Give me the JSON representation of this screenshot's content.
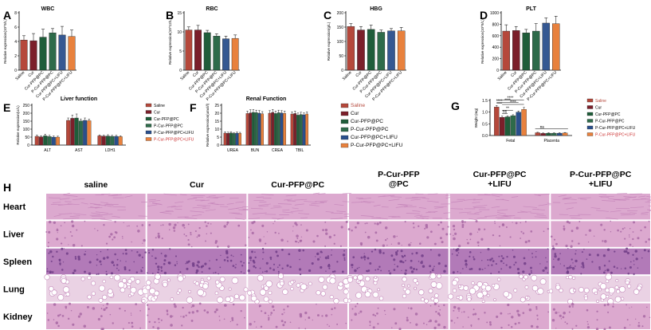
{
  "colors": {
    "saline": "#b5483b",
    "cur": "#7b1f2a",
    "cur_pfp_pc": "#1f5d3a",
    "p_cur_pfp_pc": "#2e6b4a",
    "cur_pfp_pc_lifu": "#2a4f8c",
    "p_cur_pfp_pc_lifu": "#e8813d",
    "he_stain": "#d79bc4",
    "he_dark": "#b070aa"
  },
  "chart_data": [
    {
      "panel": "A",
      "type": "bar",
      "title": "WBC",
      "ylabel": "Relative expression(10^9/L)",
      "ylim": [
        0,
        8
      ],
      "yticks": [
        "0",
        "2",
        "4",
        "6",
        "8"
      ],
      "categories": [
        "Saline",
        "Cur",
        "Cur-PFP@PC",
        "P-Cur-PFP@PC",
        "Cur-PFP@PC+LIFU",
        "P-Cur-PFP@PC+LIFU"
      ],
      "values": [
        4.2,
        4.1,
        4.6,
        5.2,
        4.9,
        4.7
      ],
      "errors": [
        0.6,
        1.0,
        1.1,
        0.6,
        1.2,
        0.9
      ]
    },
    {
      "panel": "B",
      "type": "bar",
      "title": "RBC",
      "ylabel": "Relative expression(10^12/L)",
      "ylim": [
        0,
        15
      ],
      "yticks": [
        "0",
        "5",
        "10",
        "15"
      ],
      "categories": [
        "Saline",
        "Cur",
        "Cur-PFP@PC",
        "P-Cur-PFP@PC",
        "Cur-PFP@PC+LIFU",
        "P-Cur-PFP@PC+LIFU"
      ],
      "values": [
        10.5,
        10.5,
        9.8,
        8.9,
        8.2,
        8.3
      ],
      "errors": [
        0.8,
        1.2,
        0.6,
        0.6,
        0.7,
        0.9
      ]
    },
    {
      "panel": "C",
      "type": "bar",
      "title": "HBG",
      "ylabel": "Relative expression(g/L)",
      "ylim": [
        0,
        200
      ],
      "yticks": [
        "0",
        "50",
        "100",
        "150",
        "200"
      ],
      "categories": [
        "Saline",
        "Cur",
        "Cur-PFP@PC",
        "P-Cur-PFP@PC",
        "Cur-PFP@PC+LIFU",
        "P-Cur-PFP@PC+LIFU"
      ],
      "values": [
        152,
        140,
        142,
        132,
        137,
        137
      ],
      "errors": [
        10,
        12,
        15,
        8,
        8,
        12
      ]
    },
    {
      "panel": "D",
      "type": "bar",
      "title": "PLT",
      "ylabel": "Relative expression(10^9/L)",
      "ylim": [
        0,
        1000
      ],
      "yticks": [
        "0",
        "200",
        "400",
        "600",
        "800",
        "1000"
      ],
      "categories": [
        "Saline",
        "Cur",
        "Cur-PFP@PC",
        "P-Cur-PFP@PC",
        "Cur-PFP@PC+LIFU",
        "P-Cur-PFP@PC+LIFU"
      ],
      "values": [
        680,
        690,
        650,
        680,
        820,
        810
      ],
      "errors": [
        110,
        70,
        60,
        130,
        90,
        130
      ]
    },
    {
      "panel": "E",
      "type": "bar",
      "title": "Liver function",
      "ylabel": "Relative expression(U/L)",
      "ylim": [
        0,
        250
      ],
      "yticks": [
        "0",
        "50",
        "100",
        "150",
        "200",
        "250"
      ],
      "categories": [
        "ALT",
        "AST",
        "LDH1"
      ],
      "legend": [
        "Saline",
        "Cur",
        "Cur-PFP@PC",
        "P-Cur-PFP@PC",
        "P-Cur-PFP@PC+LIFU",
        "P-Cur-PFP@PC+LIFU"
      ],
      "series": [
        {
          "name": "Saline",
          "values": [
            55,
            155,
            58
          ],
          "errors": [
            8,
            15,
            6
          ]
        },
        {
          "name": "Cur",
          "values": [
            52,
            168,
            56
          ],
          "errors": [
            7,
            20,
            6
          ]
        },
        {
          "name": "Cur-PFP@PC",
          "values": [
            58,
            170,
            57
          ],
          "errors": [
            10,
            25,
            8
          ]
        },
        {
          "name": "P-Cur-PFP@PC",
          "values": [
            54,
            152,
            55
          ],
          "errors": [
            8,
            12,
            6
          ]
        },
        {
          "name": "P-Cur-PFP@PC+LIFU",
          "values": [
            50,
            155,
            55
          ],
          "errors": [
            7,
            15,
            6
          ]
        },
        {
          "name": "P-Cur-PFP@PC+LIFU",
          "values": [
            50,
            153,
            53
          ],
          "errors": [
            6,
            10,
            5
          ]
        }
      ]
    },
    {
      "panel": "F",
      "type": "bar",
      "title": "Renal Function",
      "ylabel": "Relative expression(umol/l)",
      "ylim": [
        0,
        25
      ],
      "yticks": [
        "0",
        "5",
        "10",
        "15",
        "20",
        "25"
      ],
      "categories": [
        "UREA",
        "BUN",
        "CREA",
        "TBIL"
      ],
      "legend": [
        "Saline",
        "Cur",
        "Cur-PFP@PC",
        "P-Cur-PFP@PC",
        "Cur-PFP@PC+LIFU",
        "P-Cur-PFP@PC+LIFU"
      ],
      "series": [
        {
          "name": "Saline",
          "values": [
            7.5,
            19.8,
            20.0,
            19.5
          ],
          "errors": [
            0.8,
            1.5,
            1.6,
            1.3
          ]
        },
        {
          "name": "Cur",
          "values": [
            7.4,
            20.2,
            20.5,
            19.8
          ],
          "errors": [
            0.7,
            2.0,
            1.8,
            1.5
          ]
        },
        {
          "name": "Cur-PFP@PC",
          "values": [
            7.6,
            20.5,
            19.8,
            18.8
          ],
          "errors": [
            0.8,
            1.8,
            1.5,
            1.3
          ]
        },
        {
          "name": "P-Cur-PFP@PC",
          "values": [
            7.3,
            20.4,
            20.3,
            19.2
          ],
          "errors": [
            0.6,
            1.5,
            1.6,
            1.4
          ]
        },
        {
          "name": "Cur-PFP@PC+LIFU",
          "values": [
            7.5,
            20.0,
            20.1,
            19.0
          ],
          "errors": [
            0.7,
            1.7,
            1.5,
            1.2
          ]
        },
        {
          "name": "P-Cur-PFP@PC+LIFU",
          "values": [
            7.4,
            19.6,
            19.9,
            19.5
          ],
          "errors": [
            0.6,
            1.4,
            1.4,
            1.3
          ]
        }
      ]
    },
    {
      "panel": "G",
      "type": "bar",
      "title": "",
      "ylabel": "Weight (mg)",
      "ylim": [
        0,
        1.5
      ],
      "yticks": [
        "0.0",
        "0.5",
        "1.0",
        "1.5"
      ],
      "categories": [
        "Fetal",
        "Placenta"
      ],
      "legend": [
        "Saline",
        "Cur",
        "Cur-PFP@PC",
        "P-Cur-PFP@PC",
        "P-Cur-PFP@PC+LIFU",
        "P-Cur-PFP@PC+LIFU"
      ],
      "series": [
        {
          "name": "Saline",
          "values": [
            1.22,
            0.12
          ],
          "errors": [
            0.06,
            0.02
          ]
        },
        {
          "name": "Cur",
          "values": [
            0.78,
            0.09
          ],
          "errors": [
            0.05,
            0.02
          ]
        },
        {
          "name": "Cur-PFP@PC",
          "values": [
            0.8,
            0.1
          ],
          "errors": [
            0.04,
            0.02
          ]
        },
        {
          "name": "P-Cur-PFP@PC",
          "values": [
            0.85,
            0.1
          ],
          "errors": [
            0.04,
            0.02
          ]
        },
        {
          "name": "P-Cur-PFP@PC+LIFU",
          "values": [
            1.0,
            0.1
          ],
          "errors": [
            0.05,
            0.02
          ]
        },
        {
          "name": "P-Cur-PFP@PC+LIFU",
          "values": [
            1.12,
            0.11
          ],
          "errors": [
            0.08,
            0.02
          ]
        }
      ],
      "annotations": [
        "****",
        "****",
        "****",
        "**",
        "****",
        "ns",
        "ns"
      ]
    }
  ],
  "panel_h": {
    "letter": "H",
    "columns": [
      "saline",
      "Cur",
      "Cur-PFP@PC",
      "P-Cur-PFP\n@PC",
      "Cur-PFP@PC\n+LIFU",
      "P-Cur-PFP@PC\n+LIFU"
    ],
    "rows": [
      "Heart",
      "Liver",
      "Spleen",
      "Lung",
      "Kidney"
    ]
  }
}
